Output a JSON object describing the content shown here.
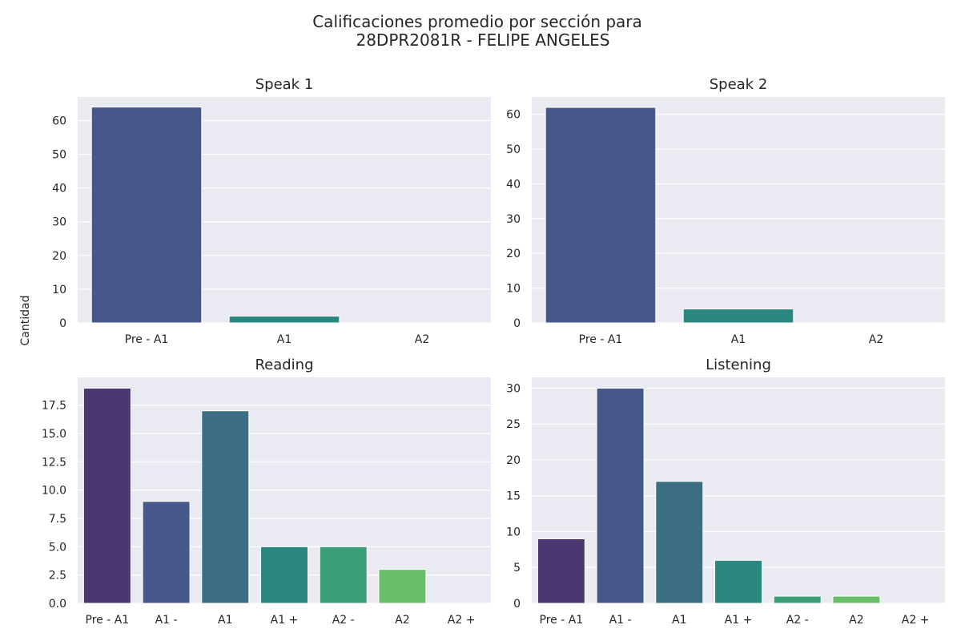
{
  "figure": {
    "title_line1": "Calificaciones promedio por sección para",
    "title_line2": "28DPR2081R - FELIPE ANGELES",
    "ylabel": "Cantidad"
  },
  "chart_data": [
    {
      "type": "bar",
      "title": "Speak 1",
      "categories": [
        "Pre - A1",
        "A1",
        "A2"
      ],
      "values": [
        64,
        2,
        0
      ],
      "colors": [
        "#46588a",
        "#2a8780",
        "#2a8780"
      ],
      "ylim": [
        0,
        67
      ],
      "yticks": [
        0,
        10,
        20,
        30,
        40,
        50,
        60
      ],
      "ytick_labels": [
        "0",
        "10",
        "20",
        "30",
        "40",
        "50",
        "60"
      ]
    },
    {
      "type": "bar",
      "title": "Speak 2",
      "categories": [
        "Pre - A1",
        "A1",
        "A2"
      ],
      "values": [
        62,
        4,
        0
      ],
      "colors": [
        "#46588a",
        "#2a8780",
        "#2a8780"
      ],
      "ylim": [
        0,
        65
      ],
      "yticks": [
        0,
        10,
        20,
        30,
        40,
        50,
        60
      ],
      "ytick_labels": [
        "0",
        "10",
        "20",
        "30",
        "40",
        "50",
        "60"
      ]
    },
    {
      "type": "bar",
      "title": "Reading",
      "categories": [
        "Pre - A1",
        "A1 -",
        "A1",
        "A1 +",
        "A2 -",
        "A2",
        "A2 +"
      ],
      "values": [
        19,
        9,
        17,
        5,
        5,
        3,
        0
      ],
      "colors": [
        "#4b3872",
        "#46588a",
        "#3b6e82",
        "#2a8780",
        "#3a9e78",
        "#6abe6a",
        "#6abe6a"
      ],
      "ylim": [
        0,
        19.95
      ],
      "yticks": [
        0,
        2.5,
        5,
        7.5,
        10,
        12.5,
        15,
        17.5
      ],
      "ytick_labels": [
        "0.0",
        "2.5",
        "5.0",
        "7.5",
        "10.0",
        "12.5",
        "15.0",
        "17.5"
      ]
    },
    {
      "type": "bar",
      "title": "Listening",
      "categories": [
        "Pre - A1",
        "A1 -",
        "A1",
        "A1 +",
        "A2 -",
        "A2",
        "A2 +"
      ],
      "values": [
        9,
        30,
        17,
        6,
        1,
        1,
        0
      ],
      "colors": [
        "#4b3872",
        "#46588a",
        "#3b6e82",
        "#2a8780",
        "#3a9e78",
        "#6abe6a",
        "#6abe6a"
      ],
      "ylim": [
        0,
        31.5
      ],
      "yticks": [
        0,
        5,
        10,
        15,
        20,
        25,
        30
      ],
      "ytick_labels": [
        "0",
        "5",
        "10",
        "15",
        "20",
        "25",
        "30"
      ]
    }
  ]
}
